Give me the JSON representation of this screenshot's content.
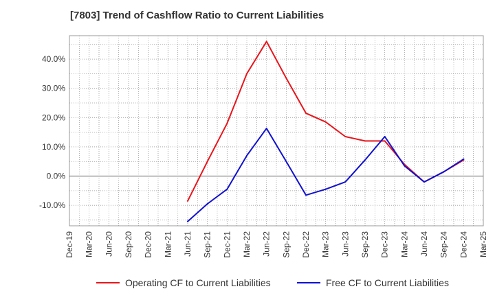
{
  "title": "[7803]  Trend of Cashflow Ratio to Current Liabilities",
  "legend": {
    "operating_label": "Operating CF to Current Liabilities",
    "free_label": "Free CF to Current Liabilities"
  },
  "chart_data": {
    "type": "line",
    "title": "[7803]  Trend of Cashflow Ratio to Current Liabilities",
    "xlabel": "",
    "ylabel": "",
    "x_ticks": [
      "Dec-19",
      "Mar-20",
      "Jun-20",
      "Sep-20",
      "Dec-20",
      "Mar-21",
      "Jun-21",
      "Sep-21",
      "Dec-21",
      "Mar-22",
      "Jun-22",
      "Sep-22",
      "Dec-22",
      "Mar-23",
      "Jun-23",
      "Sep-23",
      "Dec-23",
      "Mar-24",
      "Jun-24",
      "Sep-24",
      "Dec-24",
      "Mar-25"
    ],
    "y_ticks": [
      -10,
      0,
      10,
      20,
      30,
      40
    ],
    "y_tick_labels": [
      "-10.0%",
      "0.0%",
      "10.0%",
      "20.0%",
      "30.0%",
      "40.0%"
    ],
    "ylim": [
      -17,
      48
    ],
    "grid": true,
    "legend_position": "bottom",
    "series": [
      {
        "name": "Operating CF to Current Liabilities",
        "color": "#e8151b",
        "x": [
          "Jun-21",
          "Sep-21",
          "Dec-21",
          "Mar-22",
          "Jun-22",
          "Sep-22",
          "Dec-22",
          "Mar-23",
          "Jun-23",
          "Sep-23",
          "Dec-23",
          "Mar-24",
          "Jun-24",
          "Sep-24",
          "Dec-24"
        ],
        "values": [
          -8.5,
          5.0,
          18.0,
          35.0,
          46.0,
          33.5,
          21.5,
          18.5,
          13.5,
          12.0,
          12.0,
          4.0,
          -2.0,
          1.5,
          5.5
        ]
      },
      {
        "name": "Free CF to Current Liabilities",
        "color": "#1010d0",
        "x": [
          "Jun-21",
          "Sep-21",
          "Dec-21",
          "Mar-22",
          "Jun-22",
          "Sep-22",
          "Dec-22",
          "Mar-23",
          "Jun-23",
          "Sep-23",
          "Dec-23",
          "Mar-24",
          "Jun-24",
          "Sep-24",
          "Dec-24"
        ],
        "values": [
          -15.5,
          -9.5,
          -4.5,
          7.0,
          16.3,
          5.0,
          -6.5,
          -4.5,
          -2.0,
          5.5,
          13.5,
          3.5,
          -2.0,
          1.5,
          5.8
        ]
      }
    ]
  }
}
